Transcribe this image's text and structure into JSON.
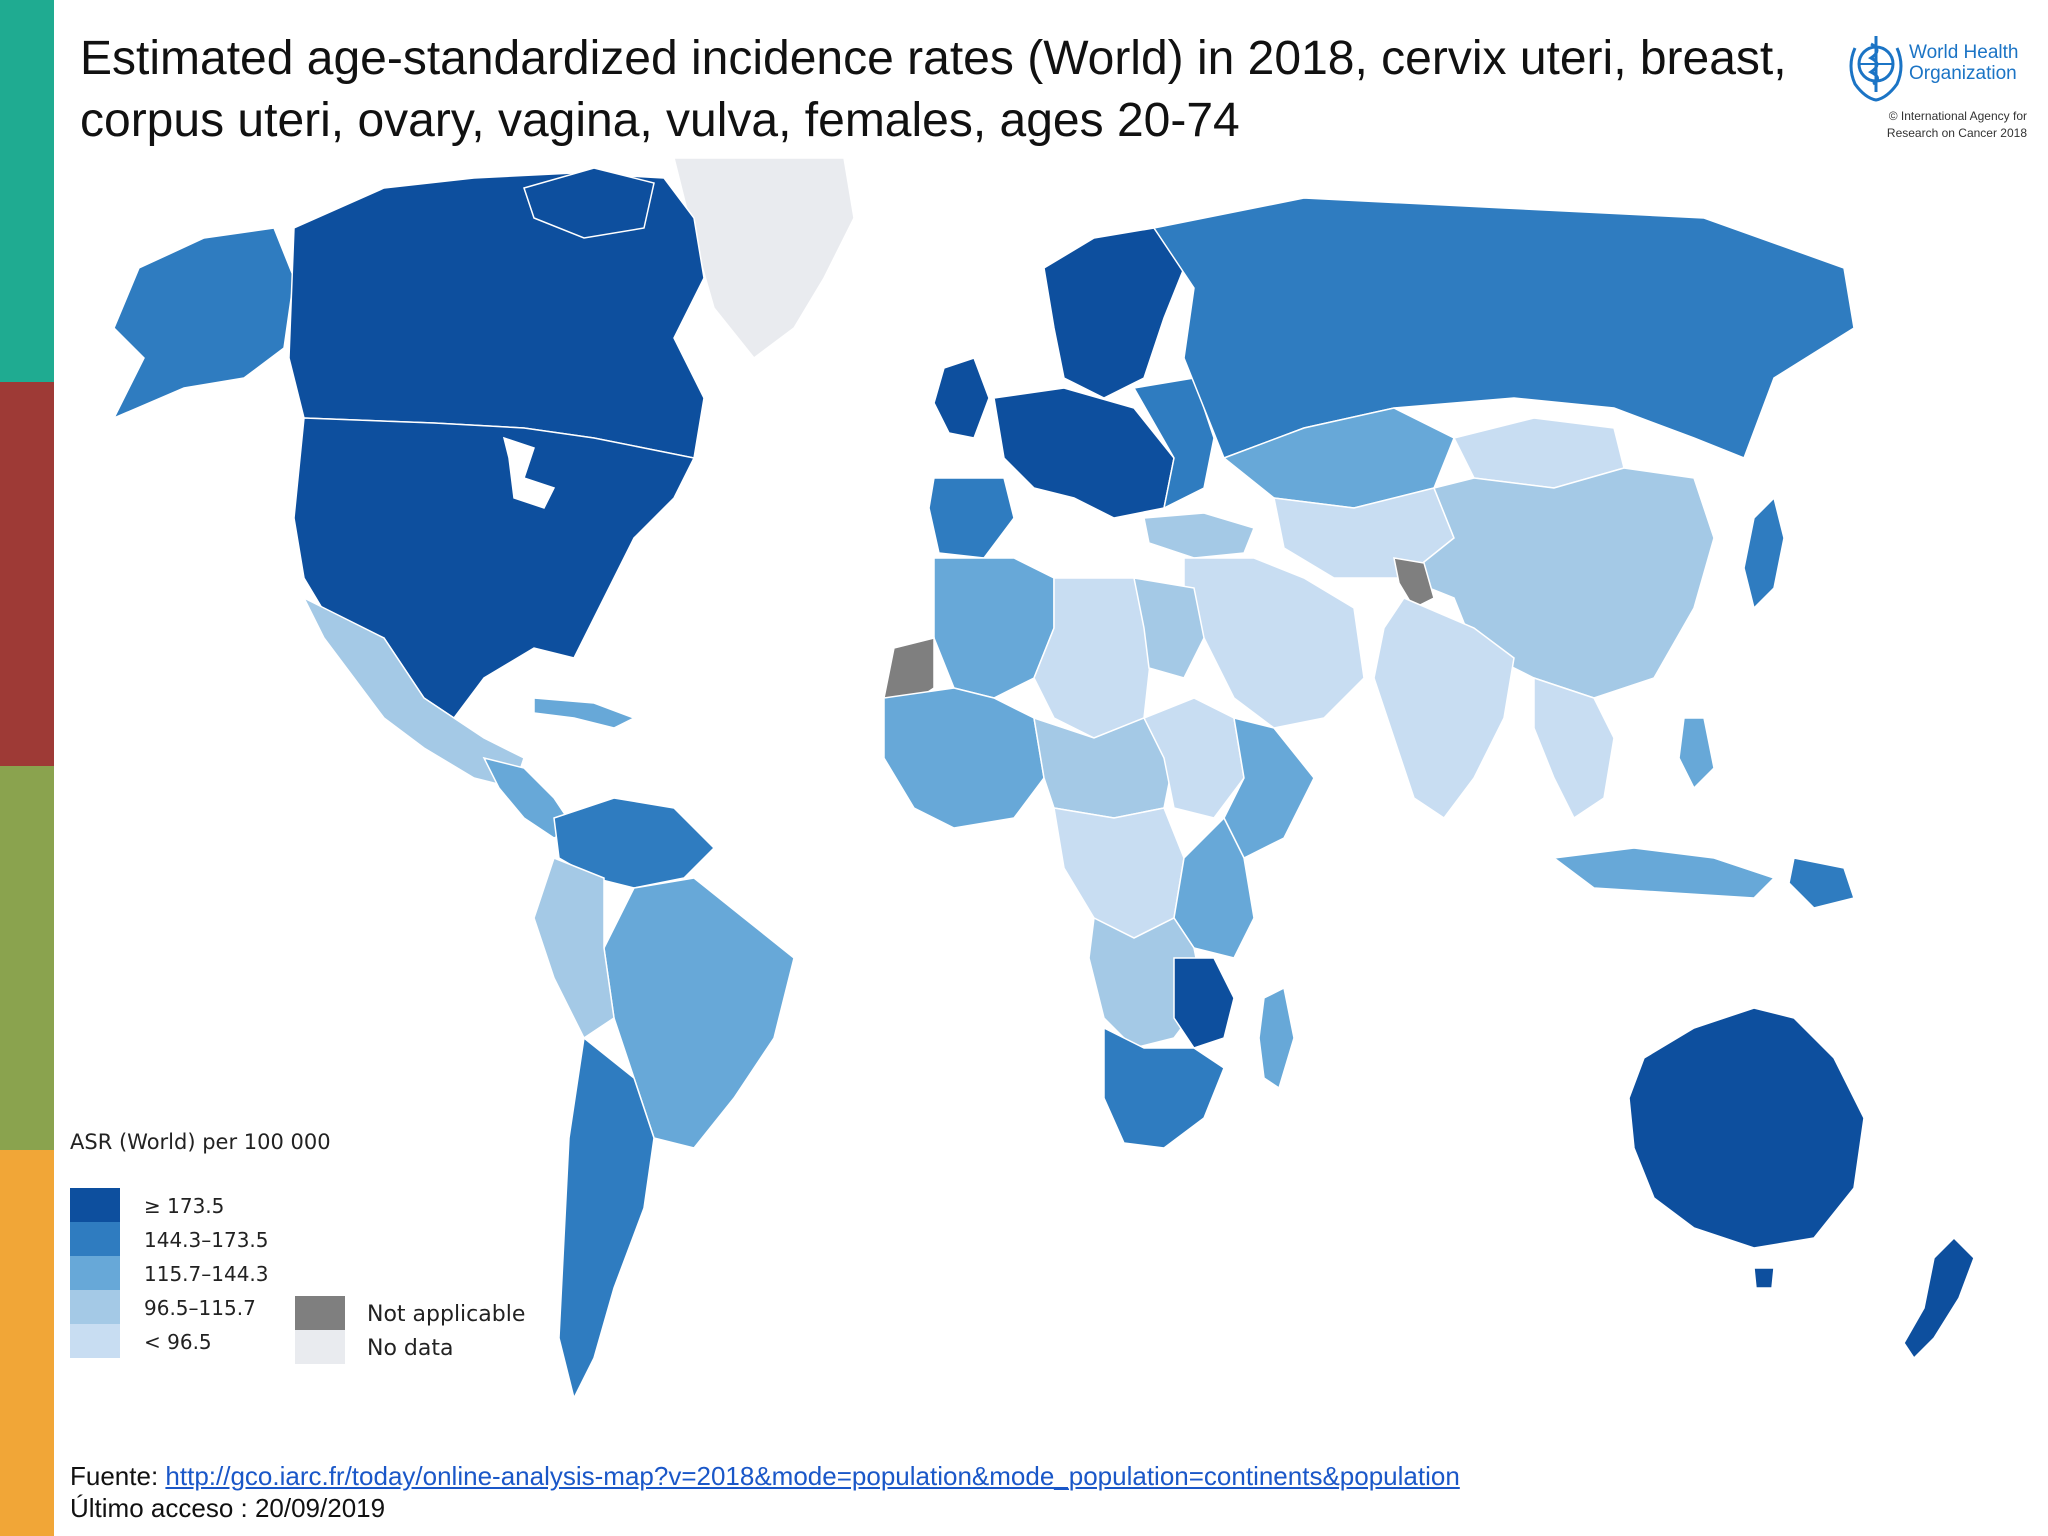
{
  "slide": {
    "title": "Estimated age-standardized incidence rates (World) in 2018, cervix uteri, breast, corpus uteri, ovary, vagina, vulva, females, ages 20-74",
    "side_colors": [
      "#1fab91",
      "#9e3a36",
      "#8aa34e",
      "#f1a637"
    ]
  },
  "logo": {
    "org_line1": "World Health",
    "org_line2": "Organization",
    "copyright_line1": "© International Agency for",
    "copyright_line2": "Research on Cancer 2018",
    "color": "#1b74c5"
  },
  "map": {
    "legend_title": "ASR (World) per 100 000",
    "classes": [
      {
        "label": "≥ 173.5",
        "color": "#0d4f9e"
      },
      {
        "label": "144.3–173.5",
        "color": "#2f7cc0"
      },
      {
        "label": "115.7–144.3",
        "color": "#67a8d8"
      },
      {
        "label": "96.5–115.7",
        "color": "#a4c9e6"
      },
      {
        "label": "< 96.5",
        "color": "#c8ddf2"
      }
    ],
    "extra": [
      {
        "label": "Not applicable",
        "color": "#7f7f7f"
      },
      {
        "label": "No data",
        "color": "#e9ebef"
      }
    ]
  },
  "footer": {
    "source_label": "Fuente: ",
    "source_url": "http://gco.iarc.fr/today/online-analysis-map?v=2018&mode=population&mode_population=continents&population",
    "access_line": "Último acceso : 20/09/2019"
  }
}
